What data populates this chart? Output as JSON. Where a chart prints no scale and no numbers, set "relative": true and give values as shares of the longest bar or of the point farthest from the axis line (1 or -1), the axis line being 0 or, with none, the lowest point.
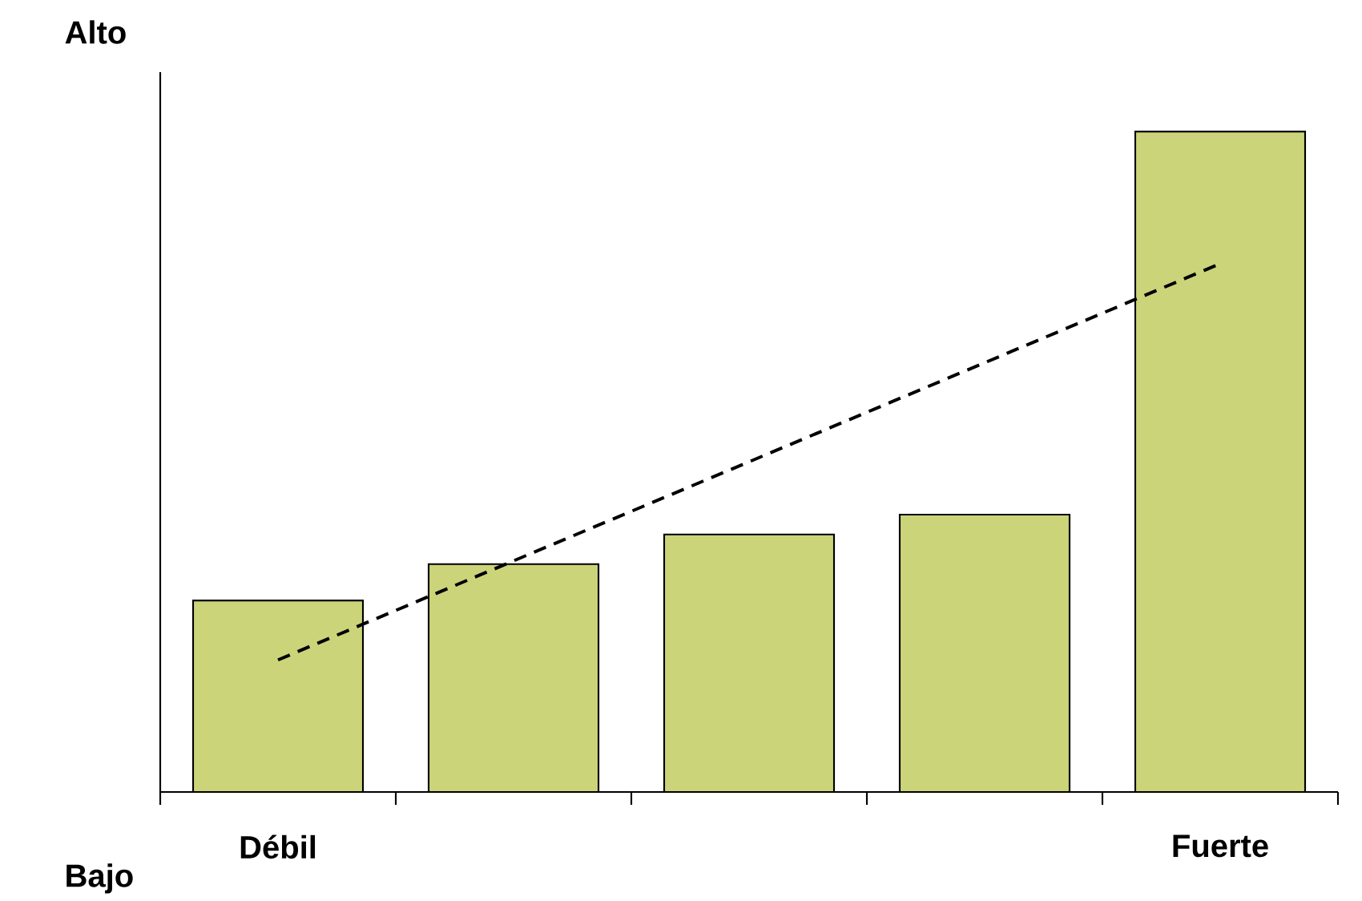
{
  "chart_data": {
    "type": "bar",
    "relative": true,
    "categories": [
      "Débil",
      null,
      null,
      null,
      "Fuerte"
    ],
    "series": [
      {
        "color": "#ccd47a",
        "values": [
          0.29,
          0.345,
          0.39,
          0.42,
          1.0
        ]
      },
      {
        "type": "line",
        "color": "#000000",
        "line_style": "dashed",
        "values": [
          0.2,
          0.35,
          0.5,
          0.65,
          0.8
        ]
      }
    ],
    "annotations": [
      "Alto",
      "Bajo"
    ]
  }
}
